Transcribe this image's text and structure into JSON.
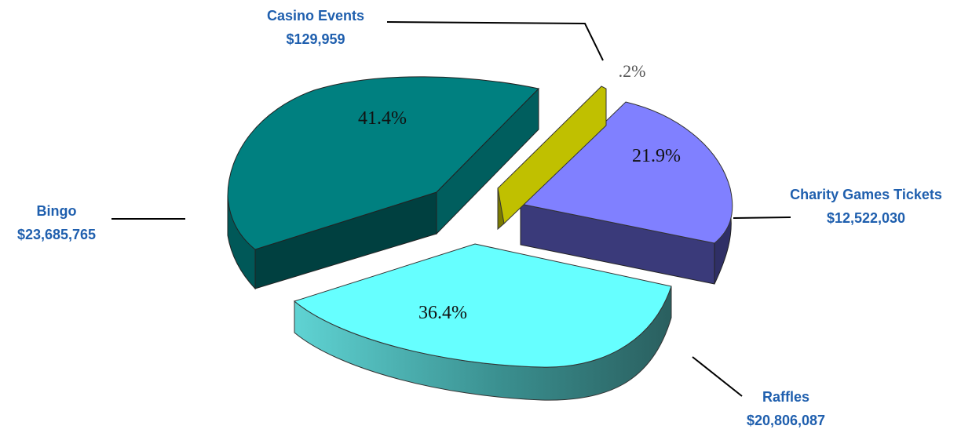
{
  "chart_data": {
    "type": "pie",
    "title": "",
    "categories": [
      "Bingo",
      "Casino Events",
      "Charity Games Tickets",
      "Raffles"
    ],
    "values": [
      23685765,
      129959,
      12522030,
      20806087
    ],
    "value_labels": [
      "$23,685,765",
      "$129,959",
      "$12,522,030",
      "$20,806,087"
    ],
    "percent_labels": [
      "41.4%",
      ".2%",
      "21.9%",
      "36.4%"
    ],
    "legend": "none",
    "style": "3d-exploded",
    "colors": {
      "Bingo": "#008080",
      "Casino Events": "#c0c000",
      "Charity Games Tickets": "#8080ff",
      "Raffles": "#66ffff"
    }
  }
}
